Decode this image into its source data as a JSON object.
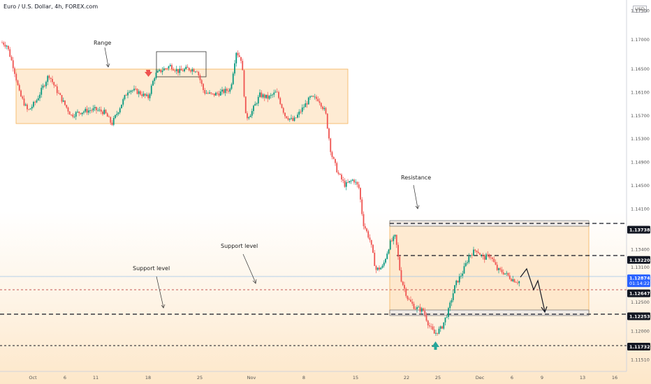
{
  "header": {
    "title": "Euro / U.S. Dollar, 4h, FOREX.com",
    "currency": "USD"
  },
  "chart_data": {
    "type": "candlestick",
    "title": "Euro / U.S. Dollar, 4h, FOREX.com",
    "ylim": [
      1.1141,
      1.1769
    ],
    "y_ticks": [
      "1.17500",
      "1.17000",
      "1.16500",
      "1.16100",
      "1.15700",
      "1.15300",
      "1.14900",
      "1.14500",
      "1.14100",
      "1.13400",
      "1.13100",
      "1.12500",
      "1.12000",
      "1.11510"
    ],
    "x_ticks": [
      "Oct",
      "6",
      "11",
      "18",
      "25",
      "Nov",
      "8",
      "15",
      "22",
      "25",
      "Dec",
      "6",
      "9",
      "13",
      "16"
    ],
    "levels": [
      {
        "label": "1.13738",
        "value": 1.13738,
        "style": "dashed-bold"
      },
      {
        "label": "1.13220",
        "value": 1.1322,
        "style": "dashed-bold"
      },
      {
        "label": "1.12647",
        "value": 1.12647,
        "style": "dashed-red"
      },
      {
        "label": "1.12253",
        "value": 1.12253,
        "style": "dashed-bold"
      },
      {
        "label": "1.11732",
        "value": 1.11732,
        "style": "dashed-bold"
      }
    ],
    "current_price": {
      "value": "1.12874",
      "time": "01:14:22",
      "y": 1.12874
    },
    "annotations": [
      {
        "text": "Range"
      },
      {
        "text": "Resistance"
      },
      {
        "text": "Support level"
      },
      {
        "text": "Support level"
      }
    ],
    "up_color": "#26a69a",
    "up_color_dark": "#089981",
    "down_color": "#ef5350",
    "range_fill": "#fde3c0",
    "range_stroke": "#f5b25a"
  }
}
